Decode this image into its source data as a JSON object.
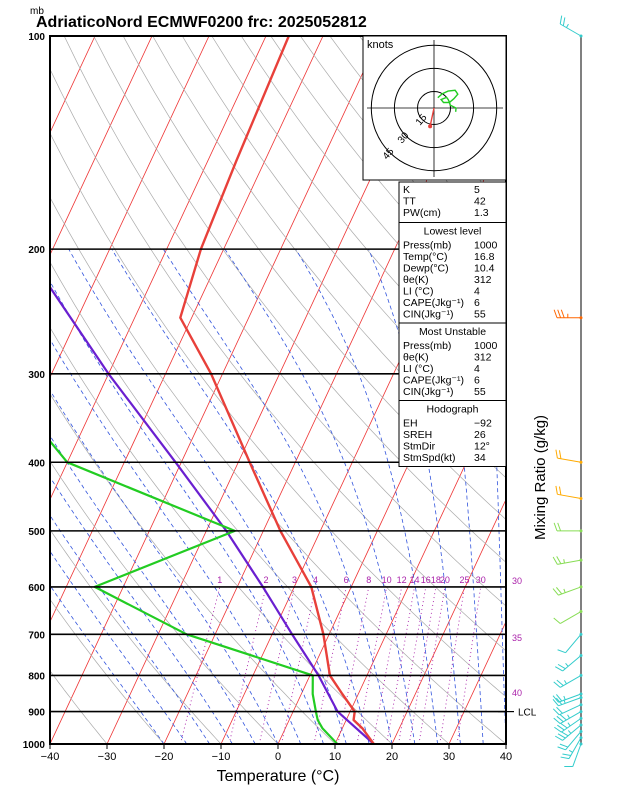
{
  "chart_data": {
    "type": "skew-t",
    "title": "AdriaticoNord ECMWF0200 frc: 2025052812",
    "pressure_unit": "mb",
    "xlabel": "Temperature (°C)",
    "ylabel": "Mixing Ratio (g/kg)",
    "x_ticks": [
      "−40",
      "−30",
      "−20",
      "−10",
      "0",
      "10",
      "20",
      "30",
      "40"
    ],
    "x_range": [
      -40,
      40
    ],
    "pressure_levels": [
      100,
      200,
      300,
      400,
      500,
      600,
      700,
      800,
      900,
      1000
    ],
    "p_range": [
      100,
      1000
    ],
    "mixing_ratio_labels": [
      "1",
      "2",
      "3",
      "4",
      "6",
      "8",
      "10",
      "12",
      "14",
      "16",
      "18",
      "20",
      "25",
      "30"
    ],
    "isotherm_labels": [
      "30",
      "35",
      "40"
    ],
    "lcl_label": "LCL",
    "lcl_pressure": 900,
    "temperature_profile": [
      {
        "p": 1000,
        "t": 16.8
      },
      {
        "p": 950,
        "t": 13.5
      },
      {
        "p": 925,
        "t": 11.3
      },
      {
        "p": 900,
        "t": 10.8
      },
      {
        "p": 850,
        "t": 7.2
      },
      {
        "p": 800,
        "t": 3.5
      },
      {
        "p": 700,
        "t": -1.0
      },
      {
        "p": 600,
        "t": -7.0
      },
      {
        "p": 500,
        "t": -17.0
      },
      {
        "p": 400,
        "t": -28.0
      },
      {
        "p": 300,
        "t": -42.0
      },
      {
        "p": 250,
        "t": -52.0
      },
      {
        "p": 200,
        "t": -54.0
      },
      {
        "p": 150,
        "t": -55.0
      },
      {
        "p": 100,
        "t": -56.0
      }
    ],
    "dewpoint_profile": [
      {
        "p": 1000,
        "t": 10.4
      },
      {
        "p": 950,
        "t": 6.5
      },
      {
        "p": 925,
        "t": 5.0
      },
      {
        "p": 900,
        "t": 4.0
      },
      {
        "p": 850,
        "t": 2.0
      },
      {
        "p": 800,
        "t": 0.5
      },
      {
        "p": 700,
        "t": -25.0
      },
      {
        "p": 600,
        "t": -45.0
      },
      {
        "p": 500,
        "t": -25.0
      },
      {
        "p": 400,
        "t": -60.0
      },
      {
        "p": 300,
        "t": -80.0
      },
      {
        "p": 200,
        "t": -95.0
      },
      {
        "p": 100,
        "t": -105.0
      }
    ],
    "parcel_profile": [
      {
        "p": 1000,
        "t": 16.8
      },
      {
        "p": 900,
        "t": 7.8
      },
      {
        "p": 800,
        "t": 1.5
      },
      {
        "p": 700,
        "t": -6.5
      },
      {
        "p": 600,
        "t": -15.5
      },
      {
        "p": 500,
        "t": -26.5
      },
      {
        "p": 400,
        "t": -41.0
      },
      {
        "p": 300,
        "t": -60.0
      },
      {
        "p": 200,
        "t": -85.0
      },
      {
        "p": 150,
        "t": -100.0
      },
      {
        "p": 120,
        "t": -108.0
      }
    ],
    "wind_profile": [
      {
        "p": 1000,
        "dir": 200,
        "spd": 10
      },
      {
        "p": 980,
        "dir": 210,
        "spd": 15
      },
      {
        "p": 960,
        "dir": 220,
        "spd": 20
      },
      {
        "p": 940,
        "dir": 230,
        "spd": 25
      },
      {
        "p": 920,
        "dir": 235,
        "spd": 25
      },
      {
        "p": 900,
        "dir": 240,
        "spd": 25
      },
      {
        "p": 880,
        "dir": 245,
        "spd": 20
      },
      {
        "p": 860,
        "dir": 250,
        "spd": 15
      },
      {
        "p": 850,
        "dir": 250,
        "spd": 15
      },
      {
        "p": 800,
        "dir": 240,
        "spd": 15
      },
      {
        "p": 750,
        "dir": 230,
        "spd": 15
      },
      {
        "p": 700,
        "dir": 220,
        "spd": 10
      },
      {
        "p": 650,
        "dir": 240,
        "spd": 10
      },
      {
        "p": 600,
        "dir": 250,
        "spd": 15
      },
      {
        "p": 550,
        "dir": 260,
        "spd": 15
      },
      {
        "p": 500,
        "dir": 270,
        "spd": 20
      },
      {
        "p": 450,
        "dir": 280,
        "spd": 20
      },
      {
        "p": 400,
        "dir": 280,
        "spd": 20
      },
      {
        "p": 250,
        "dir": 270,
        "spd": 25
      },
      {
        "p": 100,
        "dir": 300,
        "spd": 15
      }
    ],
    "hodograph": {
      "unit_label": "knots",
      "ring_labels": [
        "15",
        "30",
        "45"
      ],
      "storm_motion_dir": 12,
      "storm_motion_kt": 34
    },
    "indices": {
      "general": [
        {
          "label": "K",
          "value": "5"
        },
        {
          "label": "TT",
          "value": "42"
        },
        {
          "label": "PW(cm)",
          "value": "1.3"
        }
      ],
      "lowest_level": {
        "header": "Lowest level",
        "rows": [
          {
            "label": "Press(mb)",
            "value": "1000"
          },
          {
            "label": "Temp(°C)",
            "value": "16.8"
          },
          {
            "label": "Dewp(°C)",
            "value": "10.4"
          },
          {
            "label": "θe(K)",
            "value": "312"
          },
          {
            "label": "LI (°C)",
            "value": "4"
          },
          {
            "label": "CAPE(Jkg⁻¹)",
            "value": "6"
          },
          {
            "label": "CIN(Jkg⁻¹)",
            "value": "55"
          }
        ]
      },
      "most_unstable": {
        "header": "Most Unstable",
        "rows": [
          {
            "label": "Press(mb)",
            "value": "1000"
          },
          {
            "label": "θe(K)",
            "value": "312"
          },
          {
            "label": "LI (°C)",
            "value": "4"
          },
          {
            "label": "CAPE(Jkg⁻¹)",
            "value": "6"
          },
          {
            "label": "CIN(Jkg⁻¹)",
            "value": "55"
          }
        ]
      },
      "hodograph_box": {
        "header": "Hodograph",
        "rows": [
          {
            "label": "EH",
            "value": "−92"
          },
          {
            "label": "SREH",
            "value": "26"
          },
          {
            "label": "StmDir",
            "value": "12°"
          },
          {
            "label": "StmSpd(kt)",
            "value": "34"
          }
        ]
      }
    },
    "colors": {
      "temperature": "#e8403a",
      "dewpoint": "#22cc22",
      "parcel": "#6a1fd0",
      "isotherm": "#ee3333",
      "dry_adiabat": "#aaaaaa",
      "moist_adiabat": "#3355dd",
      "mixing_ratio": "#aa22aa",
      "wind": "#33cccc"
    }
  }
}
